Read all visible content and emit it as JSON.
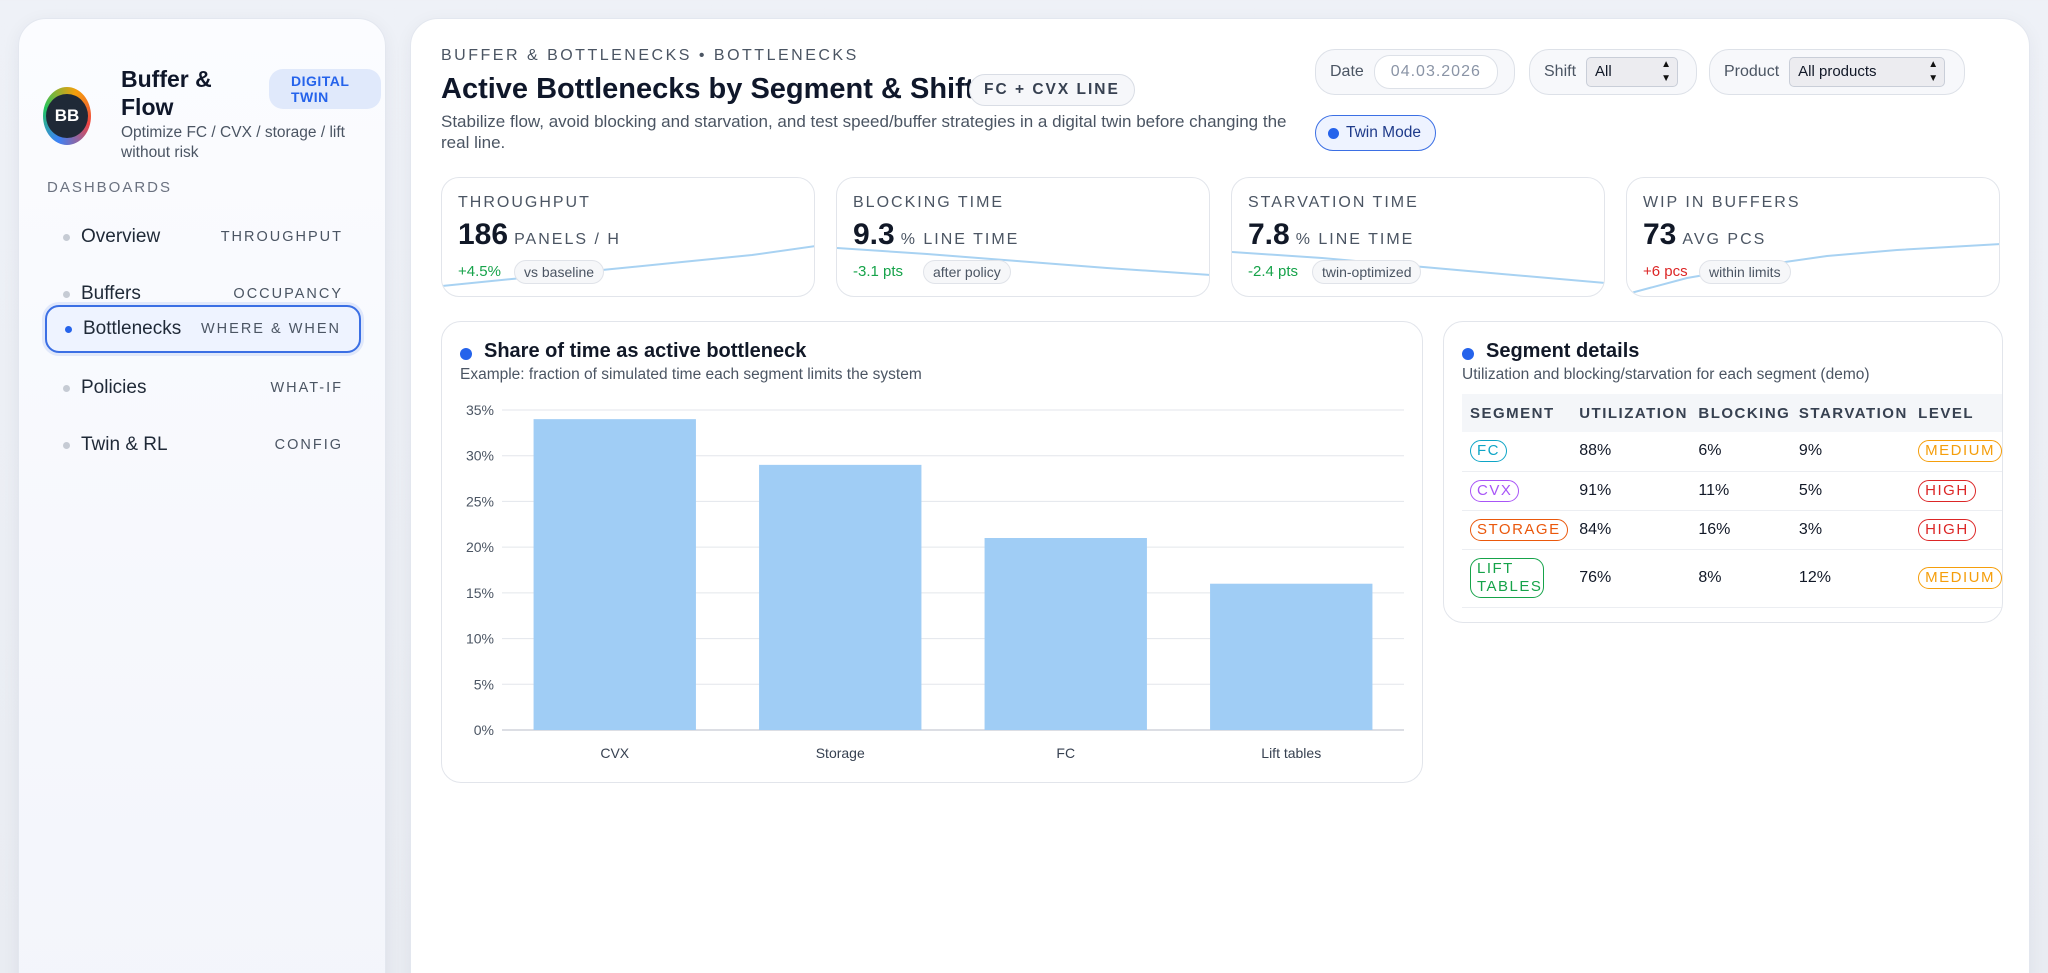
{
  "brand": {
    "initials": "BB",
    "title": "Buffer & Flow",
    "badge": "DIGITAL TWIN",
    "subtitle": "Optimize FC / CVX / storage / lift without risk"
  },
  "nav": {
    "section": "DASHBOARDS",
    "items": [
      {
        "label": "Overview",
        "tag": "THROUGHPUT",
        "active": false
      },
      {
        "label": "Buffers",
        "tag": "OCCUPANCY",
        "active": false
      },
      {
        "label": "Bottlenecks",
        "tag": "WHERE & WHEN",
        "active": true
      },
      {
        "label": "Policies",
        "tag": "WHAT-IF",
        "active": false
      },
      {
        "label": "Twin & RL",
        "tag": "CONFIG",
        "active": false
      }
    ]
  },
  "header": {
    "breadcrumb": "BUFFER & BOTTLENECKS • BOTTLENECKS",
    "title": "Active Bottlenecks by Segment & Shift",
    "line_badge": "FC + CVX LINE",
    "subtitle": "Stabilize flow, avoid blocking and starvation, and test speed/buffer strategies in a digital twin before changing the real line."
  },
  "controls": {
    "date_label": "Date",
    "date_value": "04.03.2026",
    "shift_label": "Shift",
    "shift_value": "All",
    "product_label": "Product",
    "product_value": "All products",
    "twin_mode": "Twin Mode"
  },
  "kpis": [
    {
      "label": "THROUGHPUT",
      "value": "186",
      "unit": "PANELS / H",
      "delta": "+4.5%",
      "delta_color": "#16a34a",
      "note": "vs baseline"
    },
    {
      "label": "BLOCKING TIME",
      "value": "9.3",
      "unit": "% LINE TIME",
      "delta": "-3.1 pts",
      "delta_color": "#16a34a",
      "note": "after policy"
    },
    {
      "label": "STARVATION TIME",
      "value": "7.8",
      "unit": "% LINE TIME",
      "delta": "-2.4 pts",
      "delta_color": "#16a34a",
      "note": "twin-optimized"
    },
    {
      "label": "WIP IN BUFFERS",
      "value": "73",
      "unit": "AVG PCS",
      "delta": "+6 pcs",
      "delta_color": "#dc2626",
      "note": "within limits"
    }
  ],
  "chart_panel": {
    "title": "Share of time as active bottleneck",
    "subtitle": "Example: fraction of simulated time each segment limits the system"
  },
  "chart_data": {
    "type": "bar",
    "title": "Share of time as active bottleneck",
    "categories": [
      "CVX",
      "Storage",
      "FC",
      "Lift tables"
    ],
    "values": [
      34,
      29,
      21,
      16
    ],
    "ylim": [
      0,
      35
    ],
    "yticks": [
      "0%",
      "5%",
      "10%",
      "15%",
      "20%",
      "25%",
      "30%",
      "35%"
    ],
    "xlabel": "",
    "ylabel": "",
    "bar_color": "#a0cdf5",
    "grid": true
  },
  "table_panel": {
    "title": "Segment details",
    "subtitle": "Utilization and blocking/starvation for each segment (demo)",
    "columns": [
      "SEGMENT",
      "UTILIZATION",
      "BLOCKING",
      "STARVATION",
      "LEVEL"
    ],
    "rows": [
      {
        "segment": "FC",
        "seg_color": "#0ea5c6",
        "utilization": "88%",
        "blocking": "6%",
        "starvation": "9%",
        "level": "MEDIUM",
        "level_color": "#f59e0b"
      },
      {
        "segment": "CVX",
        "seg_color": "#a855f7",
        "utilization": "91%",
        "blocking": "11%",
        "starvation": "5%",
        "level": "HIGH",
        "level_color": "#dc2626"
      },
      {
        "segment": "STORAGE",
        "seg_color": "#ea580c",
        "utilization": "84%",
        "blocking": "16%",
        "starvation": "3%",
        "level": "HIGH",
        "level_color": "#dc2626"
      },
      {
        "segment": "LIFT TABLES",
        "seg_color": "#16a34a",
        "utilization": "76%",
        "blocking": "8%",
        "starvation": "12%",
        "level": "MEDIUM",
        "level_color": "#f59e0b"
      }
    ]
  }
}
